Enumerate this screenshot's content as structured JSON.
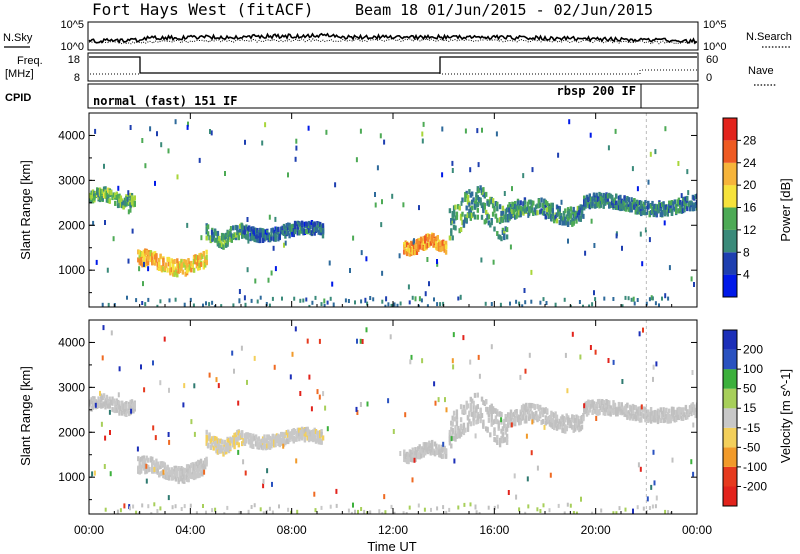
{
  "header": {
    "title": "Fort Hays West (fitACF)",
    "beam_date": "Beam 18  01/Jun/2015 - 02/Jun/2015"
  },
  "strip_labels": {
    "nsky": "N.Sky",
    "nsky_ticks": [
      "10^5",
      "10^0"
    ],
    "nsearch": "N.Search",
    "nsearch_ticks": [
      "10^5",
      "10^0"
    ],
    "freq": "Freq.",
    "freq_unit": "[MHz]",
    "freq_ticks": [
      "18",
      "8"
    ],
    "nave": "Nave",
    "nave_ticks": [
      "60",
      "0"
    ],
    "cpid": "CPID",
    "cpid_mode1": "normal (fast) 151 IF",
    "cpid_mode2": "rbsp 200 IF"
  },
  "colors": {
    "power_scale": [
      "#0019e8",
      "#1e3fb0",
      "#2e6a9b",
      "#3a8a7a",
      "#4daa55",
      "#a8d63a",
      "#f6e23b",
      "#f6b43a",
      "#f38a2a",
      "#ee5a22",
      "#e2231c"
    ],
    "velocity_scale": [
      "#1c2fb8",
      "#2a52c0",
      "#2f7a70",
      "#3cb03c",
      "#a7cf5a",
      "#c0c0c0",
      "#c8c8c8",
      "#f3cf5a",
      "#f19a2a",
      "#ef6a22",
      "#e63a1e",
      "#e2231c"
    ]
  },
  "chart_data": [
    {
      "type": "heatmap",
      "title": "Power",
      "xlabel": "Time UT",
      "ylabel": "Slant Range [km]",
      "x_ticks": [
        "00:00",
        "04:00",
        "08:00",
        "12:00",
        "16:00",
        "20:00",
        "00:00"
      ],
      "y_ticks": [
        "1000",
        "2000",
        "3000",
        "4000"
      ],
      "xlim_hours": [
        0,
        24
      ],
      "ylim_km": [
        180,
        4500
      ],
      "colorbar_label": "Power [dB]",
      "colorbar_ticks": [
        "4",
        "8",
        "12",
        "16",
        "20",
        "24",
        "28"
      ],
      "clim": [
        0,
        30
      ],
      "echo_regions": [
        {
          "t_start": 0.0,
          "t_end": 1.8,
          "range_km": 2600,
          "width_km": 260,
          "level": 12
        },
        {
          "t_start": 1.9,
          "t_end": 4.6,
          "range_km": 1150,
          "width_km": 320,
          "level": 20
        },
        {
          "t_start": 4.6,
          "t_end": 6.0,
          "range_km": 1750,
          "width_km": 300,
          "level": 10
        },
        {
          "t_start": 6.0,
          "t_end": 9.2,
          "range_km": 1850,
          "width_km": 250,
          "level": 6
        },
        {
          "t_start": 12.4,
          "t_end": 14.1,
          "range_km": 1550,
          "width_km": 260,
          "level": 22
        },
        {
          "t_start": 14.2,
          "t_end": 16.5,
          "range_km": 2250,
          "width_km": 700,
          "level": 10
        },
        {
          "t_start": 16.5,
          "t_end": 19.5,
          "range_km": 2300,
          "width_km": 350,
          "level": 9
        },
        {
          "t_start": 19.5,
          "t_end": 24.0,
          "range_km": 2450,
          "width_km": 280,
          "level": 8
        }
      ]
    },
    {
      "type": "heatmap",
      "title": "Velocity",
      "xlabel": "Time UT",
      "ylabel": "Slant Range [km]",
      "x_ticks": [
        "00:00",
        "04:00",
        "08:00",
        "12:00",
        "16:00",
        "20:00",
        "00:00"
      ],
      "y_ticks": [
        "1000",
        "2000",
        "3000",
        "4000"
      ],
      "xlim_hours": [
        0,
        24
      ],
      "ylim_km": [
        180,
        4500
      ],
      "colorbar_label": "Velocity [m s^-1]",
      "colorbar_ticks": [
        "200",
        "100",
        "50",
        "15",
        "-15",
        "-50",
        "-100",
        "-200"
      ],
      "clim": [
        -250,
        250
      ],
      "echo_regions": [
        {
          "t_start": 0.0,
          "t_end": 1.8,
          "range_km": 2600,
          "width_km": 260,
          "velocity": 0
        },
        {
          "t_start": 1.9,
          "t_end": 4.6,
          "range_km": 1150,
          "width_km": 320,
          "velocity": -10
        },
        {
          "t_start": 4.6,
          "t_end": 6.0,
          "range_km": 1750,
          "width_km": 300,
          "velocity": -40
        },
        {
          "t_start": 6.0,
          "t_end": 9.2,
          "range_km": 1850,
          "width_km": 250,
          "velocity": -30
        },
        {
          "t_start": 12.4,
          "t_end": 14.1,
          "range_km": 1550,
          "width_km": 260,
          "velocity": 0
        },
        {
          "t_start": 14.2,
          "t_end": 16.5,
          "range_km": 2250,
          "width_km": 700,
          "velocity": 0
        },
        {
          "t_start": 16.5,
          "t_end": 19.5,
          "range_km": 2300,
          "width_km": 350,
          "velocity": 0
        },
        {
          "t_start": 19.5,
          "t_end": 24.0,
          "range_km": 2450,
          "width_km": 280,
          "velocity": 0
        }
      ]
    }
  ]
}
